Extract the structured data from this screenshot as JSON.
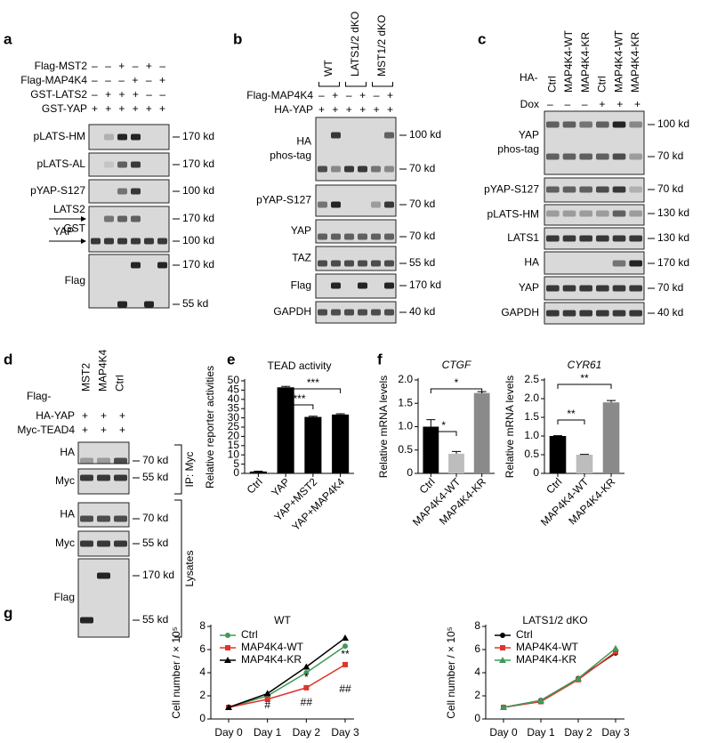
{
  "panels": {
    "a": {
      "letter": "a",
      "conditions": [
        {
          "label": "Flag-MST2",
          "signs": "– – + – + –"
        },
        {
          "label": "Flag-MAP4K4",
          "signs": "– – – + – +"
        },
        {
          "label": "GST-LATS2",
          "signs": "– + + + – –"
        },
        {
          "label": "GST-YAP",
          "signs": "+ + + + + +"
        }
      ],
      "blots": [
        {
          "label": "pLATS-HM",
          "markers": [
            "170 kd"
          ]
        },
        {
          "label": "pLATS-AL",
          "markers": [
            "170 kd"
          ]
        },
        {
          "label": "pYAP-S127",
          "markers": [
            "100 kd"
          ]
        },
        {
          "label": "GST",
          "markers": [
            "170 kd",
            "100 kd"
          ]
        },
        {
          "label": "Flag",
          "markers": [
            "170 kd",
            "55 kd"
          ]
        }
      ],
      "arrows": [
        "LATS2",
        "YAP"
      ]
    },
    "b": {
      "letter": "b",
      "groups": [
        "WT",
        "LATS1/2 dKO",
        "MST1/2 dKO"
      ],
      "conditions": [
        {
          "label": "Flag-MAP4K4",
          "signs": "– + – + – +"
        },
        {
          "label": "HA-YAP",
          "signs": "+ + + + + +"
        }
      ],
      "blots": [
        {
          "label": "HA",
          "label2": "phos-tag",
          "markers": [
            "100 kd",
            "70 kd"
          ]
        },
        {
          "label": "pYAP-S127",
          "markers": [
            "70 kd"
          ]
        },
        {
          "label": "YAP",
          "markers": [
            "70 kd"
          ]
        },
        {
          "label": "TAZ",
          "markers": [
            "55 kd"
          ]
        },
        {
          "label": "Flag",
          "markers": [
            "170 kd"
          ]
        },
        {
          "label": "GAPDH",
          "markers": [
            "40 kd"
          ]
        }
      ]
    },
    "c": {
      "letter": "c",
      "prefix": "HA-",
      "columns": [
        "Ctrl",
        "MAP4K4-WT",
        "MAP4K4-KR",
        "Ctrl",
        "MAP4K4-WT",
        "MAP4K4-KR"
      ],
      "conditions": [
        {
          "label": "Dox",
          "signs": "– – – + + +"
        }
      ],
      "blots": [
        {
          "label": "YAP",
          "label2": "phos-tag",
          "markers": [
            "100 kd",
            "70 kd"
          ]
        },
        {
          "label": "pYAP-S127",
          "markers": [
            "70 kd"
          ]
        },
        {
          "label": "pLATS-HM",
          "markers": [
            "130 kd"
          ]
        },
        {
          "label": "LATS1",
          "markers": [
            "130 kd"
          ]
        },
        {
          "label": "HA",
          "markers": [
            "170 kd"
          ]
        },
        {
          "label": "YAP",
          "markers": [
            "70 kd"
          ]
        },
        {
          "label": "GAPDH",
          "markers": [
            "40 kd"
          ]
        }
      ]
    },
    "d": {
      "letter": "d",
      "prefix": "Flag-",
      "columns": [
        "MST2",
        "MAP4K4",
        "Ctrl"
      ],
      "conditions": [
        {
          "label": "HA-YAP",
          "signs": "+ + +"
        },
        {
          "label": "Myc-TEAD4",
          "signs": "+ + +"
        }
      ],
      "blots": [
        {
          "label": "HA",
          "markers": [
            "70 kd"
          ]
        },
        {
          "label": "Myc",
          "markers": [
            "55 kd"
          ]
        },
        {
          "label": "HA",
          "markers": [
            "70 kd"
          ]
        },
        {
          "label": "Myc",
          "markers": [
            "55 kd"
          ]
        },
        {
          "label": "Flag",
          "markers": [
            "170 kd",
            "55 kd"
          ]
        }
      ],
      "brackets": [
        "IP: Myc",
        "Lysates"
      ]
    }
  },
  "chart_data": [
    {
      "type": "bar",
      "panel": "e",
      "title": "TEAD activity",
      "ylabel": "Relative reporter activities",
      "categories": [
        "Ctrl",
        "YAP",
        "YAP+MST2",
        "YAP+MAP4K4"
      ],
      "values": [
        1,
        46.5,
        30.5,
        31.8
      ],
      "errors": [
        0.2,
        0.5,
        0.4,
        0.4
      ],
      "colors": [
        "#000000",
        "#000000",
        "#000000",
        "#000000"
      ],
      "ylim": [
        0,
        50
      ],
      "yticks": [
        0,
        5,
        10,
        15,
        20,
        25,
        30,
        35,
        40,
        45,
        50
      ],
      "annotations": [
        "***",
        "***"
      ]
    },
    {
      "type": "bar",
      "panel": "f",
      "title": "CTGF",
      "ylabel": "Relative mRNA levels",
      "categories": [
        "Ctrl",
        "MAP4K4-WT",
        "MAP4K4-KR"
      ],
      "values": [
        1.0,
        0.42,
        1.72
      ],
      "errors": [
        0.15,
        0.05,
        0.03
      ],
      "colors": [
        "#000000",
        "#bdbdbd",
        "#8a8a8a"
      ],
      "ylim": [
        0,
        2
      ],
      "yticks": [
        0,
        0.5,
        {
          "value": 1,
          "label": "1.0"
        },
        1.5,
        {
          "value": 2,
          "label": "2.0"
        }
      ],
      "annotations": [
        "*",
        "*"
      ]
    },
    {
      "type": "bar",
      "title": "CYR61",
      "ylabel": "Relative mRNA levels",
      "categories": [
        "Ctrl",
        "MAP4K4-WT",
        "MAP4K4-KR"
      ],
      "values": [
        1.0,
        0.5,
        1.9
      ],
      "errors": [
        0.01,
        0.01,
        0.05
      ],
      "colors": [
        "#000000",
        "#bdbdbd",
        "#8a8a8a"
      ],
      "ylim": [
        0,
        2.5
      ],
      "yticks": [
        0,
        0.5,
        {
          "value": 1,
          "label": "1.0"
        },
        1.5,
        {
          "value": 2,
          "label": "2.0"
        },
        2.5
      ],
      "annotations": [
        "**",
        "**"
      ]
    },
    {
      "type": "line",
      "panel": "g",
      "title": "WT",
      "ylabel": "Cell number / × 10⁵",
      "categories": [
        "Day 0",
        "Day 1",
        "Day 2",
        "Day 3"
      ],
      "series": [
        {
          "name": "Ctrl",
          "color": "#3f9a5a",
          "marker": "circle",
          "values": [
            1,
            2.0,
            4.0,
            6.3
          ]
        },
        {
          "name": "MAP4K4-WT",
          "color": "#e0342c",
          "marker": "square",
          "values": [
            1,
            1.7,
            2.7,
            4.7
          ]
        },
        {
          "name": "MAP4K4-KR",
          "color": "#000000",
          "marker": "triangle",
          "values": [
            1,
            2.2,
            4.5,
            7.0
          ]
        }
      ],
      "ylim": [
        0,
        8
      ],
      "yticks": [
        0,
        2,
        4,
        6,
        8
      ],
      "annotations": [
        "*",
        "**",
        "#",
        "##",
        "##"
      ]
    },
    {
      "type": "line",
      "title": "LATS1/2 dKO",
      "ylabel": "Cell number / × 10⁵",
      "categories": [
        "Day 0",
        "Day 1",
        "Day 2",
        "Day 3"
      ],
      "series": [
        {
          "name": "Ctrl",
          "color": "#000000",
          "marker": "circle",
          "values": [
            1,
            1.6,
            3.5,
            5.7
          ]
        },
        {
          "name": "MAP4K4-WT",
          "color": "#e0342c",
          "marker": "square",
          "values": [
            1,
            1.5,
            3.4,
            5.8
          ]
        },
        {
          "name": "MAP4K4-KR",
          "color": "#3f9a5a",
          "marker": "triangle",
          "values": [
            1,
            1.6,
            3.5,
            6.1
          ]
        }
      ],
      "ylim": [
        0,
        8
      ],
      "yticks": [
        0,
        2,
        4,
        6,
        8
      ]
    }
  ]
}
